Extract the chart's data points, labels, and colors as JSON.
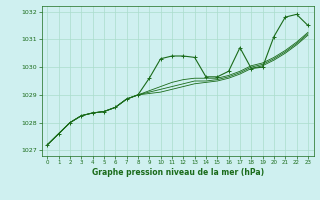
{
  "bg_color": "#cff0f0",
  "grid_color": "#aaddcc",
  "line_color": "#1a6b1a",
  "xlabel": "Graphe pression niveau de la mer (hPa)",
  "xlim": [
    -0.5,
    23.5
  ],
  "ylim": [
    1026.8,
    1032.2
  ],
  "yticks": [
    1027,
    1028,
    1029,
    1030,
    1031,
    1032
  ],
  "xticks": [
    0,
    1,
    2,
    3,
    4,
    5,
    6,
    7,
    8,
    9,
    10,
    11,
    12,
    13,
    14,
    15,
    16,
    17,
    18,
    19,
    20,
    21,
    22,
    23
  ],
  "series": [
    [
      1027.2,
      1027.6,
      1028.0,
      1028.25,
      1028.35,
      1028.4,
      1028.55,
      1028.85,
      1029.0,
      1029.6,
      1030.3,
      1030.4,
      1030.4,
      1030.35,
      1029.65,
      1029.65,
      1029.85,
      1030.7,
      1029.95,
      1030.0,
      1031.1,
      1031.8,
      1031.9,
      1031.5
    ],
    [
      1027.2,
      1027.6,
      1028.0,
      1028.25,
      1028.35,
      1028.4,
      1028.55,
      1028.85,
      1029.0,
      1029.05,
      1029.1,
      1029.2,
      1029.3,
      1029.4,
      1029.45,
      1029.5,
      1029.6,
      1029.75,
      1029.95,
      1030.05,
      1030.25,
      1030.5,
      1030.8,
      1031.15
    ],
    [
      1027.2,
      1027.6,
      1028.0,
      1028.25,
      1028.35,
      1028.4,
      1028.55,
      1028.85,
      1029.0,
      1029.1,
      1029.2,
      1029.3,
      1029.4,
      1029.5,
      1029.5,
      1029.55,
      1029.65,
      1029.8,
      1030.0,
      1030.1,
      1030.3,
      1030.55,
      1030.85,
      1031.2
    ],
    [
      1027.2,
      1027.6,
      1028.0,
      1028.25,
      1028.35,
      1028.4,
      1028.55,
      1028.85,
      1029.0,
      1029.15,
      1029.3,
      1029.45,
      1029.55,
      1029.6,
      1029.6,
      1029.6,
      1029.7,
      1029.85,
      1030.05,
      1030.15,
      1030.35,
      1030.6,
      1030.9,
      1031.25
    ]
  ]
}
